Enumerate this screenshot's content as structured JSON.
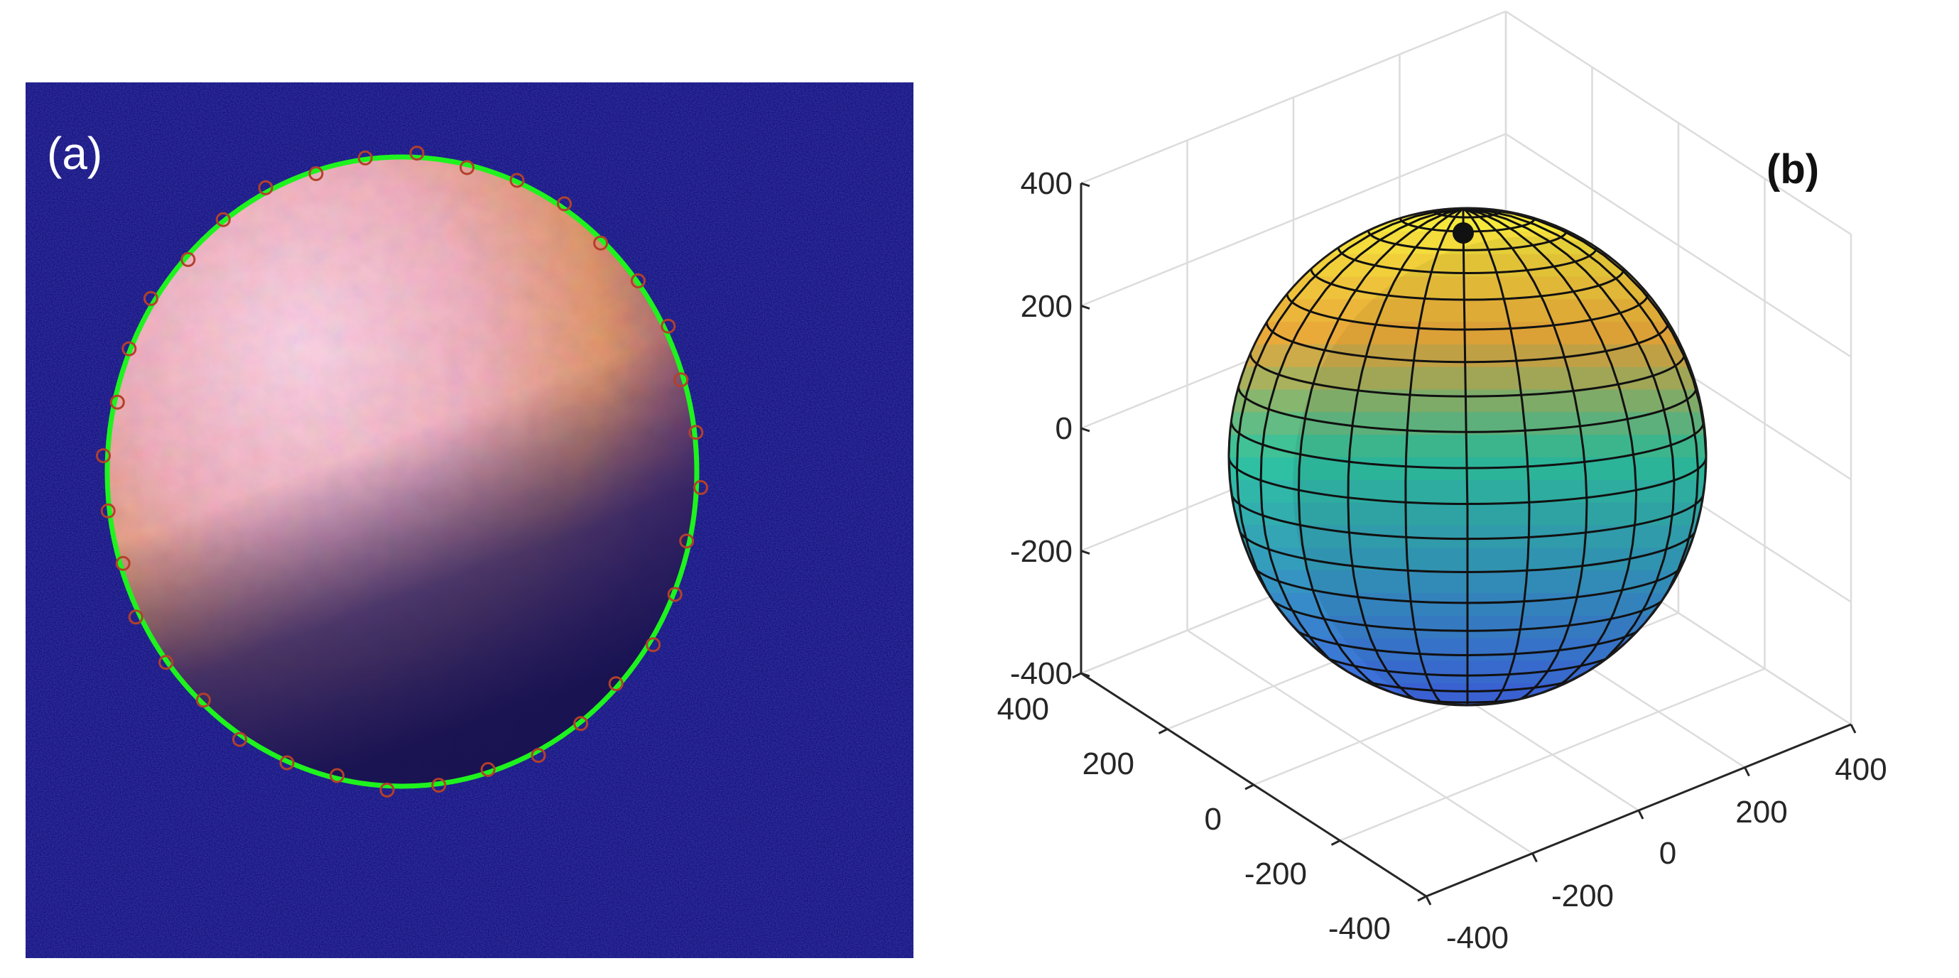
{
  "panel_a": {
    "label": "(a)",
    "colors": {
      "background": "#0c0d72",
      "fit_ellipse": "#1ef31e",
      "edge_markers": "#b3402a",
      "droplet_bright": "#f1c4dc",
      "droplet_warm": "#e08f4f",
      "droplet_dark": "#2a1f6e"
    }
  },
  "panel_b": {
    "label": "(b)",
    "axes": {
      "z_ticks": [
        "400",
        "200",
        "0",
        "-200",
        "-400"
      ],
      "left_floor_ticks": [
        "400",
        "200",
        "0",
        "-200",
        "-400"
      ],
      "right_floor_ticks": [
        "-400",
        "-200",
        "0",
        "200",
        "400"
      ]
    },
    "colormap": [
      "#440154",
      "#3b528b",
      "#21918c",
      "#5ec962",
      "#fde725"
    ],
    "surface_colors": {
      "bottom": "#3d68e0",
      "middle": "#2ec4a0",
      "lower_top": "#e8a73a",
      "top": "#f5e83c"
    },
    "grid_color": "#dcdcdc",
    "axis_color": "#262626"
  }
}
